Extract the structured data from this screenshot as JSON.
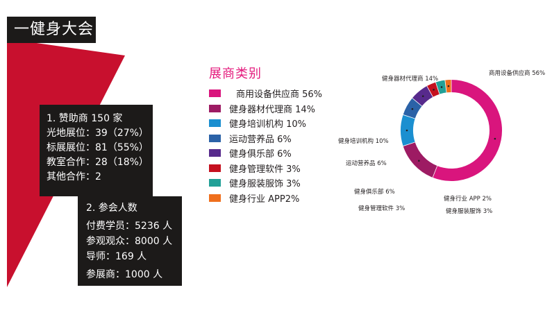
{
  "header": {
    "title": "一健身大会"
  },
  "stats": {
    "sponsors": {
      "heading": "1. 赞助商 150 家",
      "lines": [
        "光地展位：39（27%）",
        "标展展位：81（55%）",
        "教室合作：28（18%）",
        "其他合作：2"
      ]
    },
    "attendees": {
      "heading": "2. 参会人数",
      "lines": [
        "付费学员：5236 人",
        "参观观众：8000 人",
        "导师：169 人",
        "参展商：1000 人"
      ]
    }
  },
  "colors": {
    "accent_red": "#c8102e",
    "dark_box": "#1c1a19",
    "title_pink": "#e4197c"
  },
  "chart_data": {
    "type": "pie",
    "variant": "donut",
    "title": "展商类别",
    "slices": [
      {
        "name": "商用设备供应商",
        "value": 56,
        "color": "#d9157d",
        "legend_label": "商用设备供应商 56%",
        "chart_label": "商用设备供应商 56%"
      },
      {
        "name": "健身器材代理商",
        "value": 14,
        "color": "#9d1b63",
        "legend_label": "健身器材代理商 14%",
        "chart_label": "健身器材代理商 14%"
      },
      {
        "name": "健身培训机构",
        "value": 10,
        "color": "#1b8fd0",
        "legend_label": "健身培训机构 10%",
        "chart_label": "健身培训机构 10%"
      },
      {
        "name": "运动营养品",
        "value": 6,
        "color": "#2b62a7",
        "legend_label": "运动营养品 6%",
        "chart_label": "运动营养品 6%"
      },
      {
        "name": "健身俱乐部",
        "value": 6,
        "color": "#572a8c",
        "legend_label": "健身俱乐部 6%",
        "chart_label": "健身俱乐部 6%"
      },
      {
        "name": "健身管理软件",
        "value": 3,
        "color": "#c5101f",
        "legend_label": "健身管理软件 3%",
        "chart_label": "健身管理软件 3%"
      },
      {
        "name": "健身服装服饰",
        "value": 3,
        "color": "#22a097",
        "legend_label": "健身服装服饰 3%",
        "chart_label": "健身服装服饰 3%"
      },
      {
        "name": "健身行业 APP",
        "value": 2,
        "color": "#ef6f1d",
        "legend_label": "健身行业 APP2%",
        "chart_label": "健身行业 APP 2%"
      }
    ]
  }
}
